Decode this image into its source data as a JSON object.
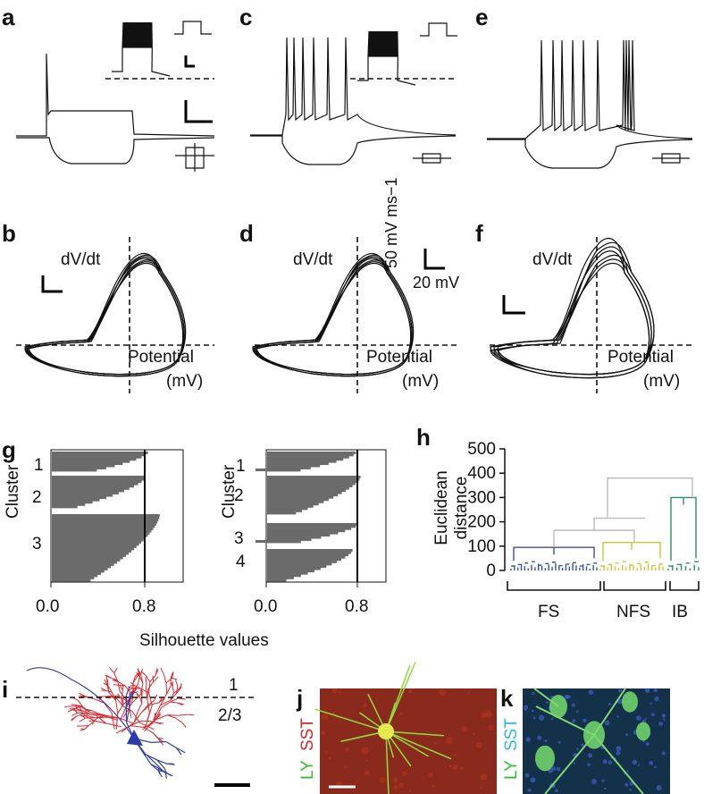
{
  "labels": [
    "a",
    "b",
    "c",
    "d",
    "e",
    "f",
    "g",
    "h",
    "i",
    "j",
    "k"
  ],
  "phase_plots": [
    {
      "y_label": "dV/dt",
      "x_label": "Potential",
      "x_unit": "(mV)"
    },
    {
      "y_label": "dV/dt",
      "x_label": "Potential",
      "x_unit": "(mV)"
    },
    {
      "y_label": "dV/dt",
      "x_label": "Potential",
      "x_unit": "(mV)"
    }
  ],
  "scale_bar": {
    "y": "50 mV ms−1",
    "x": "20 mV"
  },
  "silhouette": {
    "y_label": "Cluster",
    "x_label": "Silhouette values",
    "left": {
      "clusters": [
        "1",
        "2",
        "3"
      ],
      "xticks": [
        "0.0",
        "0.8"
      ]
    },
    "right": {
      "clusters": [
        "1",
        "2",
        "3",
        "4"
      ],
      "xticks": [
        "0.0",
        "0.8"
      ]
    }
  },
  "dendrogram": {
    "y_label": [
      "Euclidean",
      "distance"
    ],
    "yticks": [
      0,
      100,
      200,
      300,
      400,
      500
    ],
    "groups": [
      "FS",
      "NFS",
      "IB"
    ]
  },
  "morphology": {
    "layers": [
      "1",
      "2/3"
    ]
  },
  "images": [
    {
      "stains": [
        "LY",
        "SST"
      ]
    },
    {
      "stains": [
        "LY",
        "SST"
      ]
    }
  ]
}
